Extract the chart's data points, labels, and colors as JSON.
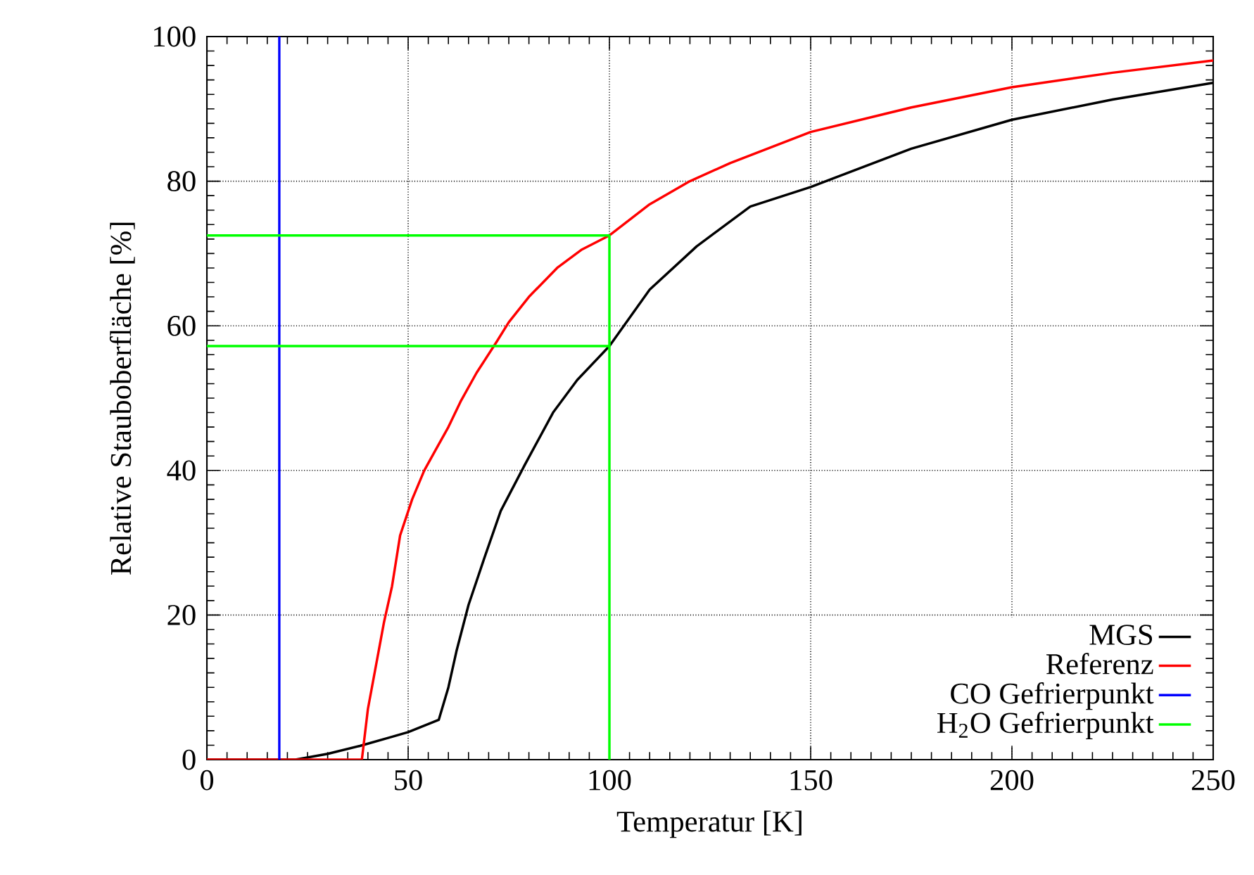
{
  "chart_data": {
    "type": "line",
    "xlabel": "Temperatur [K]",
    "ylabel": "Relative Stauboberfläche [%]",
    "xlim": [
      0,
      250
    ],
    "ylim": [
      0,
      100
    ],
    "xticks": [
      0,
      50,
      100,
      150,
      200,
      250
    ],
    "yticks": [
      0,
      20,
      40,
      60,
      80,
      100
    ],
    "grid": true,
    "legend": "bottom right",
    "line_style": "solid",
    "marker": "none",
    "series": [
      {
        "name": "MGS",
        "color": "#000000",
        "x": [
          0,
          22,
          30,
          38,
          45,
          50,
          57.6,
          60,
          62,
          65,
          69,
          73,
          79,
          86,
          92,
          100,
          110,
          121.7,
          135,
          150,
          175,
          200,
          225,
          250
        ],
        "values": [
          0,
          0,
          0.8,
          1.9,
          3,
          3.8,
          5.5,
          10,
          15,
          21.4,
          28,
          34.4,
          40.8,
          48,
          52.5,
          57.2,
          65,
          71,
          76.5,
          79.2,
          84.5,
          88.5,
          91.3,
          93.6
        ]
      },
      {
        "name": "Referenz",
        "color": "#ff0000",
        "x": [
          0,
          38.5,
          40,
          42,
          44,
          46,
          48,
          51,
          54,
          57,
          60,
          63,
          67,
          72,
          75,
          80,
          87,
          93,
          100,
          110,
          120,
          130,
          150,
          175,
          200,
          225,
          250
        ],
        "values": [
          0,
          0,
          7,
          13,
          19,
          24,
          31,
          36,
          40,
          43,
          46,
          49.5,
          53.5,
          57.8,
          60.5,
          64,
          68,
          70.5,
          72.5,
          76.8,
          80,
          82.5,
          86.8,
          90.2,
          93,
          95,
          96.7
        ]
      },
      {
        "name": "CO Gefrierpunkt",
        "color": "#0000ff",
        "x": [
          18,
          18
        ],
        "values": [
          0,
          100
        ]
      },
      {
        "name": "H$_{2}$O Gefrierpunkt",
        "color": "#00ff00",
        "x": [
          0,
          100,
          100,
          100,
          0
        ],
        "values": [
          72.5,
          72.5,
          0,
          57.2,
          57.2
        ]
      }
    ]
  }
}
